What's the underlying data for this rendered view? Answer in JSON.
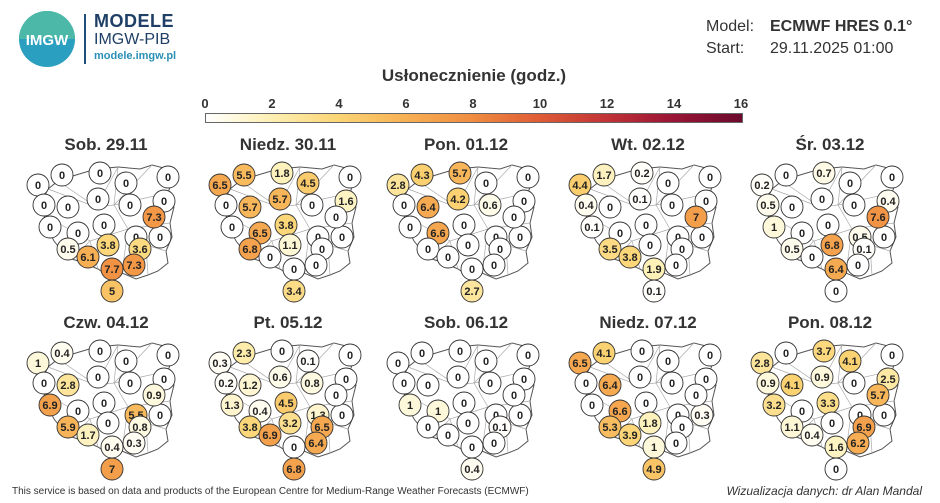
{
  "header": {
    "logo_text": "IMGW",
    "brand_title": "MODELE",
    "brand_sub": "IMGW-PIB",
    "brand_url": "modele.imgw.pl"
  },
  "model_info": {
    "model_label": "Model:",
    "model_value": "ECMWF HRES 0.1°",
    "start_label": "Start:",
    "start_value": "29.11.2025 01:00"
  },
  "legend": {
    "title": "Usłonecznienie (godz.)",
    "ticks": [
      "0",
      "2",
      "4",
      "6",
      "8",
      "10",
      "12",
      "14",
      "16"
    ]
  },
  "panels": [
    {
      "title": "Sob. 29.11",
      "values": [
        "0",
        "0",
        "0",
        "0",
        "0",
        "0",
        "0",
        "0",
        "0",
        "0",
        "0",
        "0",
        "0",
        "0",
        "0.5",
        "3.8",
        "3.6",
        "6.1",
        "7.7",
        "7.3",
        "5",
        "0",
        "7.3"
      ]
    },
    {
      "title": "Niedz. 30.11",
      "values": [
        "6.5",
        "5.5",
        "1.8",
        "4.5",
        "0",
        "0",
        "5.7",
        "5.7",
        "0",
        "1.6",
        "0",
        "6.5",
        "3.8",
        "0",
        "6.8",
        "1.1",
        "0",
        "0",
        "0",
        "0",
        "3.4",
        "0",
        "0"
      ]
    },
    {
      "title": "Pon. 01.12",
      "values": [
        "2.8",
        "4.3",
        "5.7",
        "0",
        "0",
        "0",
        "6.4",
        "4.2",
        "0.6",
        "0",
        "0",
        "6.6",
        "0",
        "0",
        "0",
        "0",
        "0",
        "0",
        "0",
        "0",
        "2.7",
        "0",
        "0"
      ]
    },
    {
      "title": "Wt. 02.12",
      "values": [
        "4.4",
        "1.7",
        "0.2",
        "0",
        "0",
        "0.4",
        "0",
        "0.1",
        "0",
        "0",
        "0.1",
        "0",
        "0",
        "0",
        "3.5",
        "0",
        "0",
        "3.8",
        "1.9",
        "0",
        "0.1",
        "0",
        "7"
      ]
    },
    {
      "title": "Śr. 03.12",
      "values": [
        "0.2",
        "0",
        "0.7",
        "0",
        "0",
        "0.5",
        "0",
        "0",
        "0",
        "0.4",
        "1",
        "0",
        "0",
        "0.5",
        "0.5",
        "6.8",
        "0.1",
        "0",
        "6.4",
        "0",
        "0",
        "0",
        "7.6"
      ]
    },
    {
      "title": "Czw. 04.12",
      "values": [
        "1",
        "0.4",
        "0",
        "0",
        "0",
        "0",
        "2.8",
        "0",
        "0",
        "0",
        "6.9",
        "0",
        "0",
        "5.5",
        "5.9",
        "0",
        "0.8",
        "1.7",
        "0.4",
        "0.3",
        "7",
        "0",
        "0.9"
      ]
    },
    {
      "title": "Pt. 05.12",
      "values": [
        "0.3",
        "2.3",
        "0",
        "0.1",
        "0",
        "0.2",
        "1.2",
        "0.6",
        "0.8",
        "0",
        "1.3",
        "0.4",
        "4.5",
        "1.3",
        "3.8",
        "3.2",
        "6.5",
        "6.9",
        "0",
        "6.4",
        "6.8",
        "0",
        "0"
      ]
    },
    {
      "title": "Sob. 06.12",
      "values": [
        "0",
        "0",
        "0",
        "0",
        "0",
        "0",
        "0",
        "0",
        "0",
        "0",
        "1",
        "1",
        "0",
        "0",
        "0",
        "0",
        "0.1",
        "0",
        "0",
        "0",
        "0.4",
        "0",
        "0"
      ]
    },
    {
      "title": "Niedz. 07.12",
      "values": [
        "6.5",
        "4.1",
        "0",
        "0",
        "0",
        "0",
        "6.4",
        "0",
        "0",
        "0",
        "0",
        "6.6",
        "0",
        "0",
        "5.3",
        "1.8",
        "0",
        "3.9",
        "1",
        "0",
        "4.9",
        "0.3",
        "0"
      ]
    },
    {
      "title": "Pon. 08.12",
      "values": [
        "2.8",
        "0",
        "3.7",
        "4.1",
        "0",
        "0.9",
        "4.1",
        "0.9",
        "0",
        "2.5",
        "3.2",
        "0",
        "3.3",
        "0",
        "1.1",
        "0",
        "6.9",
        "0.4",
        "1.6",
        "6.2",
        "0",
        "0",
        "5.7"
      ]
    }
  ],
  "footer": {
    "source": "This service is based on data and products of the European Centre for Medium-Range Weather Forecasts (ECMWF)",
    "author": "Wizualizacja danych: dr Alan Mandal"
  }
}
